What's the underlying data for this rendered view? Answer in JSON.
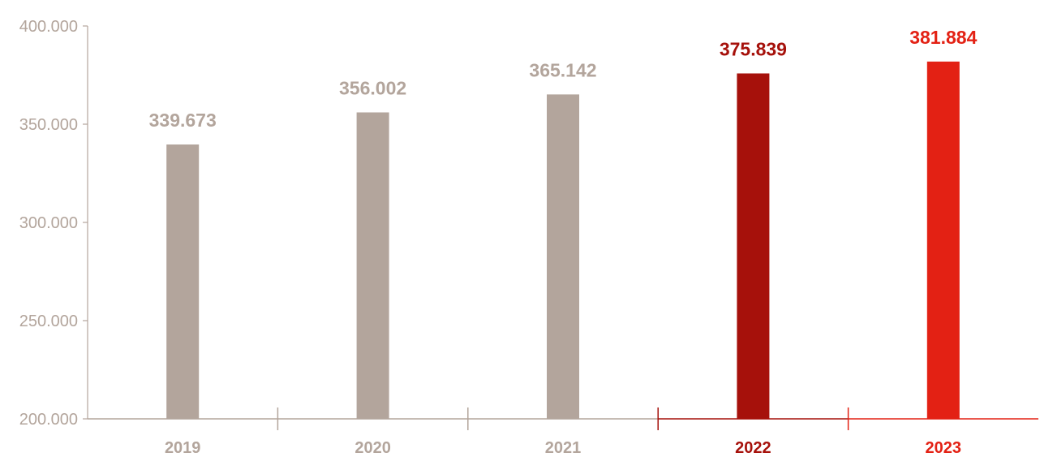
{
  "chart_data": {
    "type": "bar",
    "categories": [
      "2019",
      "2020",
      "2021",
      "2022",
      "2023"
    ],
    "values": [
      339673,
      356002,
      365142,
      375839,
      381884
    ],
    "value_labels": [
      "339.673",
      "356.002",
      "365.142",
      "375.839",
      "381.884"
    ],
    "y_ticks": [
      {
        "value": 200000,
        "label": "200.000"
      },
      {
        "value": 250000,
        "label": "250.000"
      },
      {
        "value": 300000,
        "label": "300.000"
      },
      {
        "value": 350000,
        "label": "350.000"
      },
      {
        "value": 400000,
        "label": "400.000"
      }
    ],
    "ylim": [
      200000,
      400000
    ],
    "title": "",
    "xlabel": "",
    "ylabel": "",
    "grid": false,
    "legend": "none",
    "bar_colors": [
      "#b3a59c",
      "#b3a59c",
      "#b3a59c",
      "#a6110b",
      "#e32114"
    ],
    "axis_color": "#b3a59c",
    "y_tick_color": "#b3a59c"
  }
}
